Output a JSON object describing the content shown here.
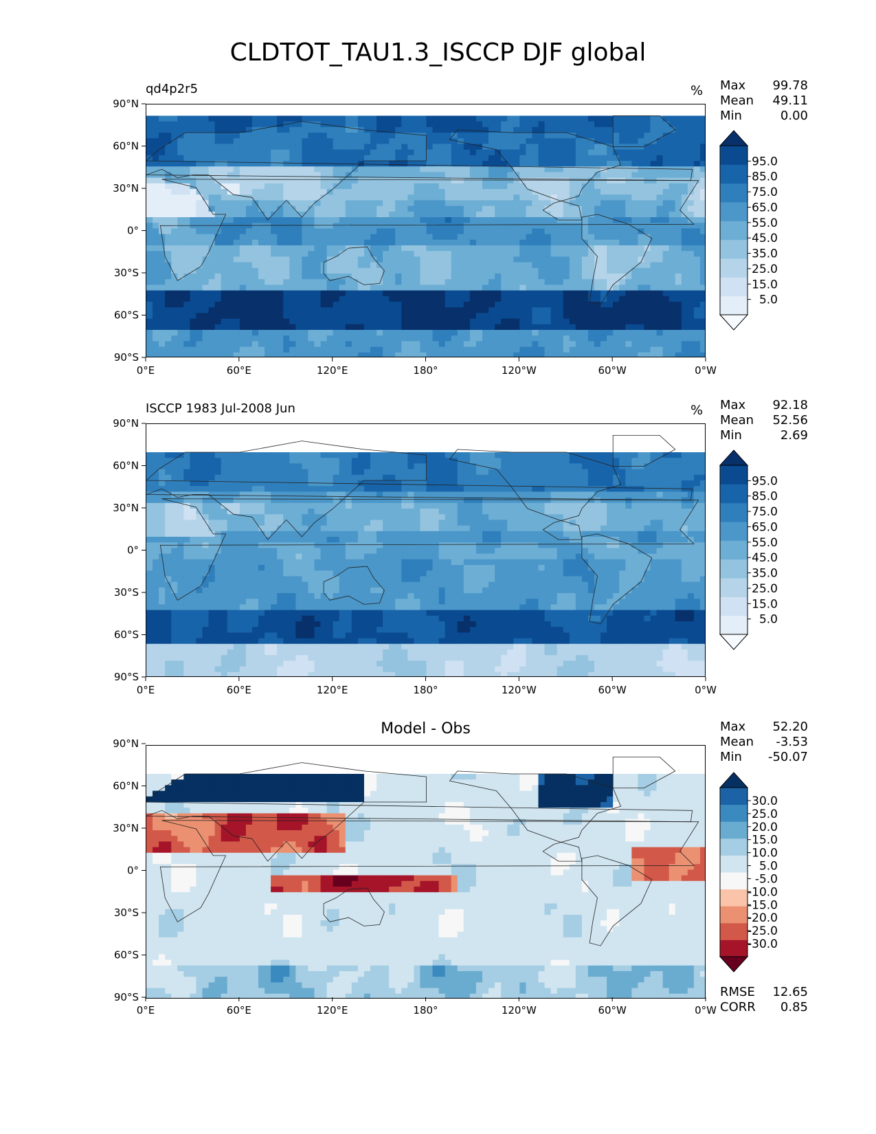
{
  "title": "CLDTOT_TAU1.3_ISCCP DJF global",
  "colors": {
    "blues": [
      "#f7fbff",
      "#e3eef9",
      "#cfe1f2",
      "#b5d4e9",
      "#93c3df",
      "#6daed5",
      "#4b97c9",
      "#2f7fbc",
      "#1864aa",
      "#0a4a90",
      "#08306b"
    ],
    "diverging": [
      "#67001f",
      "#a51429",
      "#d25849",
      "#eb9172",
      "#f9c4a9",
      "#f7f7f7",
      "#d1e5f0",
      "#a5cde3",
      "#6aacd0",
      "#3a89bf",
      "#1b63a6",
      "#053061"
    ]
  },
  "chart_data": [
    {
      "type": "heatmap",
      "panel_title": "qd4p2r5",
      "units": "%",
      "stats": {
        "max_label": "Max",
        "max": "99.78",
        "mean_label": "Mean",
        "mean": "49.11",
        "min_label": "Min",
        "min": "0.00"
      },
      "x_ticks": [
        "0°E",
        "60°E",
        "120°E",
        "180°",
        "120°W",
        "60°W",
        "0°W"
      ],
      "y_ticks": [
        "90°N",
        "60°N",
        "30°N",
        "0°",
        "30°S",
        "60°S",
        "90°S"
      ],
      "colorbar": {
        "labels": [
          "95.0",
          "85.0",
          "75.0",
          "65.0",
          "55.0",
          "45.0",
          "35.0",
          "25.0",
          "15.0",
          "5.0"
        ],
        "extend": "both"
      },
      "colormap": "blues",
      "field": "model"
    },
    {
      "type": "heatmap",
      "panel_title": "ISCCP 1983 Jul-2008 Jun",
      "units": "%",
      "stats": {
        "max_label": "Max",
        "max": "92.18",
        "mean_label": "Mean",
        "mean": "52.56",
        "min_label": "Min",
        "min": "2.69"
      },
      "x_ticks": [
        "0°E",
        "60°E",
        "120°E",
        "180°",
        "120°W",
        "60°W",
        "0°W"
      ],
      "y_ticks": [
        "90°N",
        "60°N",
        "30°N",
        "0°",
        "30°S",
        "60°S",
        "90°S"
      ],
      "colorbar": {
        "labels": [
          "95.0",
          "85.0",
          "75.0",
          "65.0",
          "55.0",
          "45.0",
          "35.0",
          "25.0",
          "15.0",
          "5.0"
        ],
        "extend": "both"
      },
      "colormap": "blues",
      "field": "obs"
    },
    {
      "type": "heatmap",
      "panel_title": "Model - Obs",
      "units": "",
      "stats": {
        "max_label": "Max",
        "max": "52.20",
        "mean_label": "Mean",
        "mean": "-3.53",
        "min_label": "Min",
        "min": "-50.07"
      },
      "x_ticks": [
        "0°E",
        "60°E",
        "120°E",
        "180°",
        "120°W",
        "60°W",
        "0°W"
      ],
      "y_ticks": [
        "90°N",
        "60°N",
        "30°N",
        "0°",
        "30°S",
        "60°S",
        "90°S"
      ],
      "colorbar": {
        "labels": [
          "30.0",
          "25.0",
          "20.0",
          "15.0",
          "10.0",
          "5.0",
          "-5.0",
          "-10.0",
          "-15.0",
          "-20.0",
          "-25.0",
          "-30.0"
        ],
        "extend": "both"
      },
      "colormap": "diverging",
      "field": "diff",
      "metrics": {
        "rmse_label": "RMSE",
        "rmse": "12.65",
        "corr_label": "CORR",
        "corr": "0.85"
      }
    }
  ]
}
